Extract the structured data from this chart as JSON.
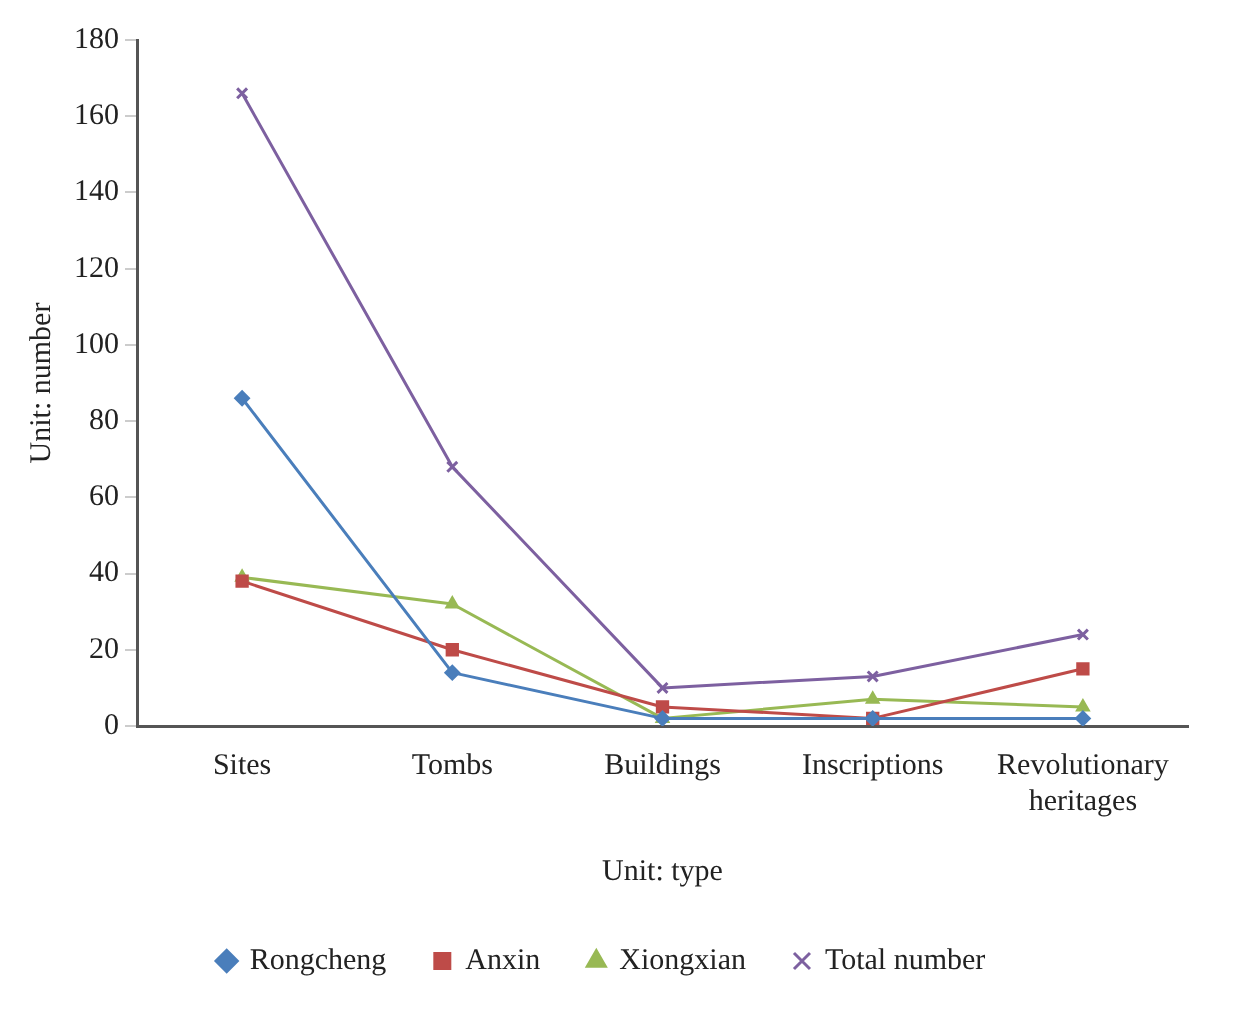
{
  "chart_data": {
    "type": "line",
    "xlabel": "Unit: type",
    "ylabel": "Unit: number",
    "categories": [
      "Sites",
      "Tombs",
      "Buildings",
      "Inscriptions",
      "Revolutionary heritages"
    ],
    "ylim": [
      0,
      180
    ],
    "yticks": [
      0,
      20,
      40,
      60,
      80,
      100,
      120,
      140,
      160,
      180
    ],
    "grid": false,
    "legend": "bottom",
    "line_style": "solid",
    "series": [
      {
        "name": "Rongcheng",
        "color": "#4a7ebb",
        "marker": "diamond",
        "values": [
          86,
          14,
          2,
          2,
          2
        ]
      },
      {
        "name": "Anxin",
        "color": "#be4b48",
        "marker": "square",
        "values": [
          38,
          20,
          5,
          2,
          15
        ]
      },
      {
        "name": "Xiongxian",
        "color": "#98b954",
        "marker": "triangle",
        "values": [
          39,
          32,
          2,
          7,
          5
        ]
      },
      {
        "name": "Total number",
        "color": "#7d60a0",
        "marker": "cross",
        "values": [
          166,
          68,
          10,
          13,
          24
        ]
      }
    ]
  }
}
